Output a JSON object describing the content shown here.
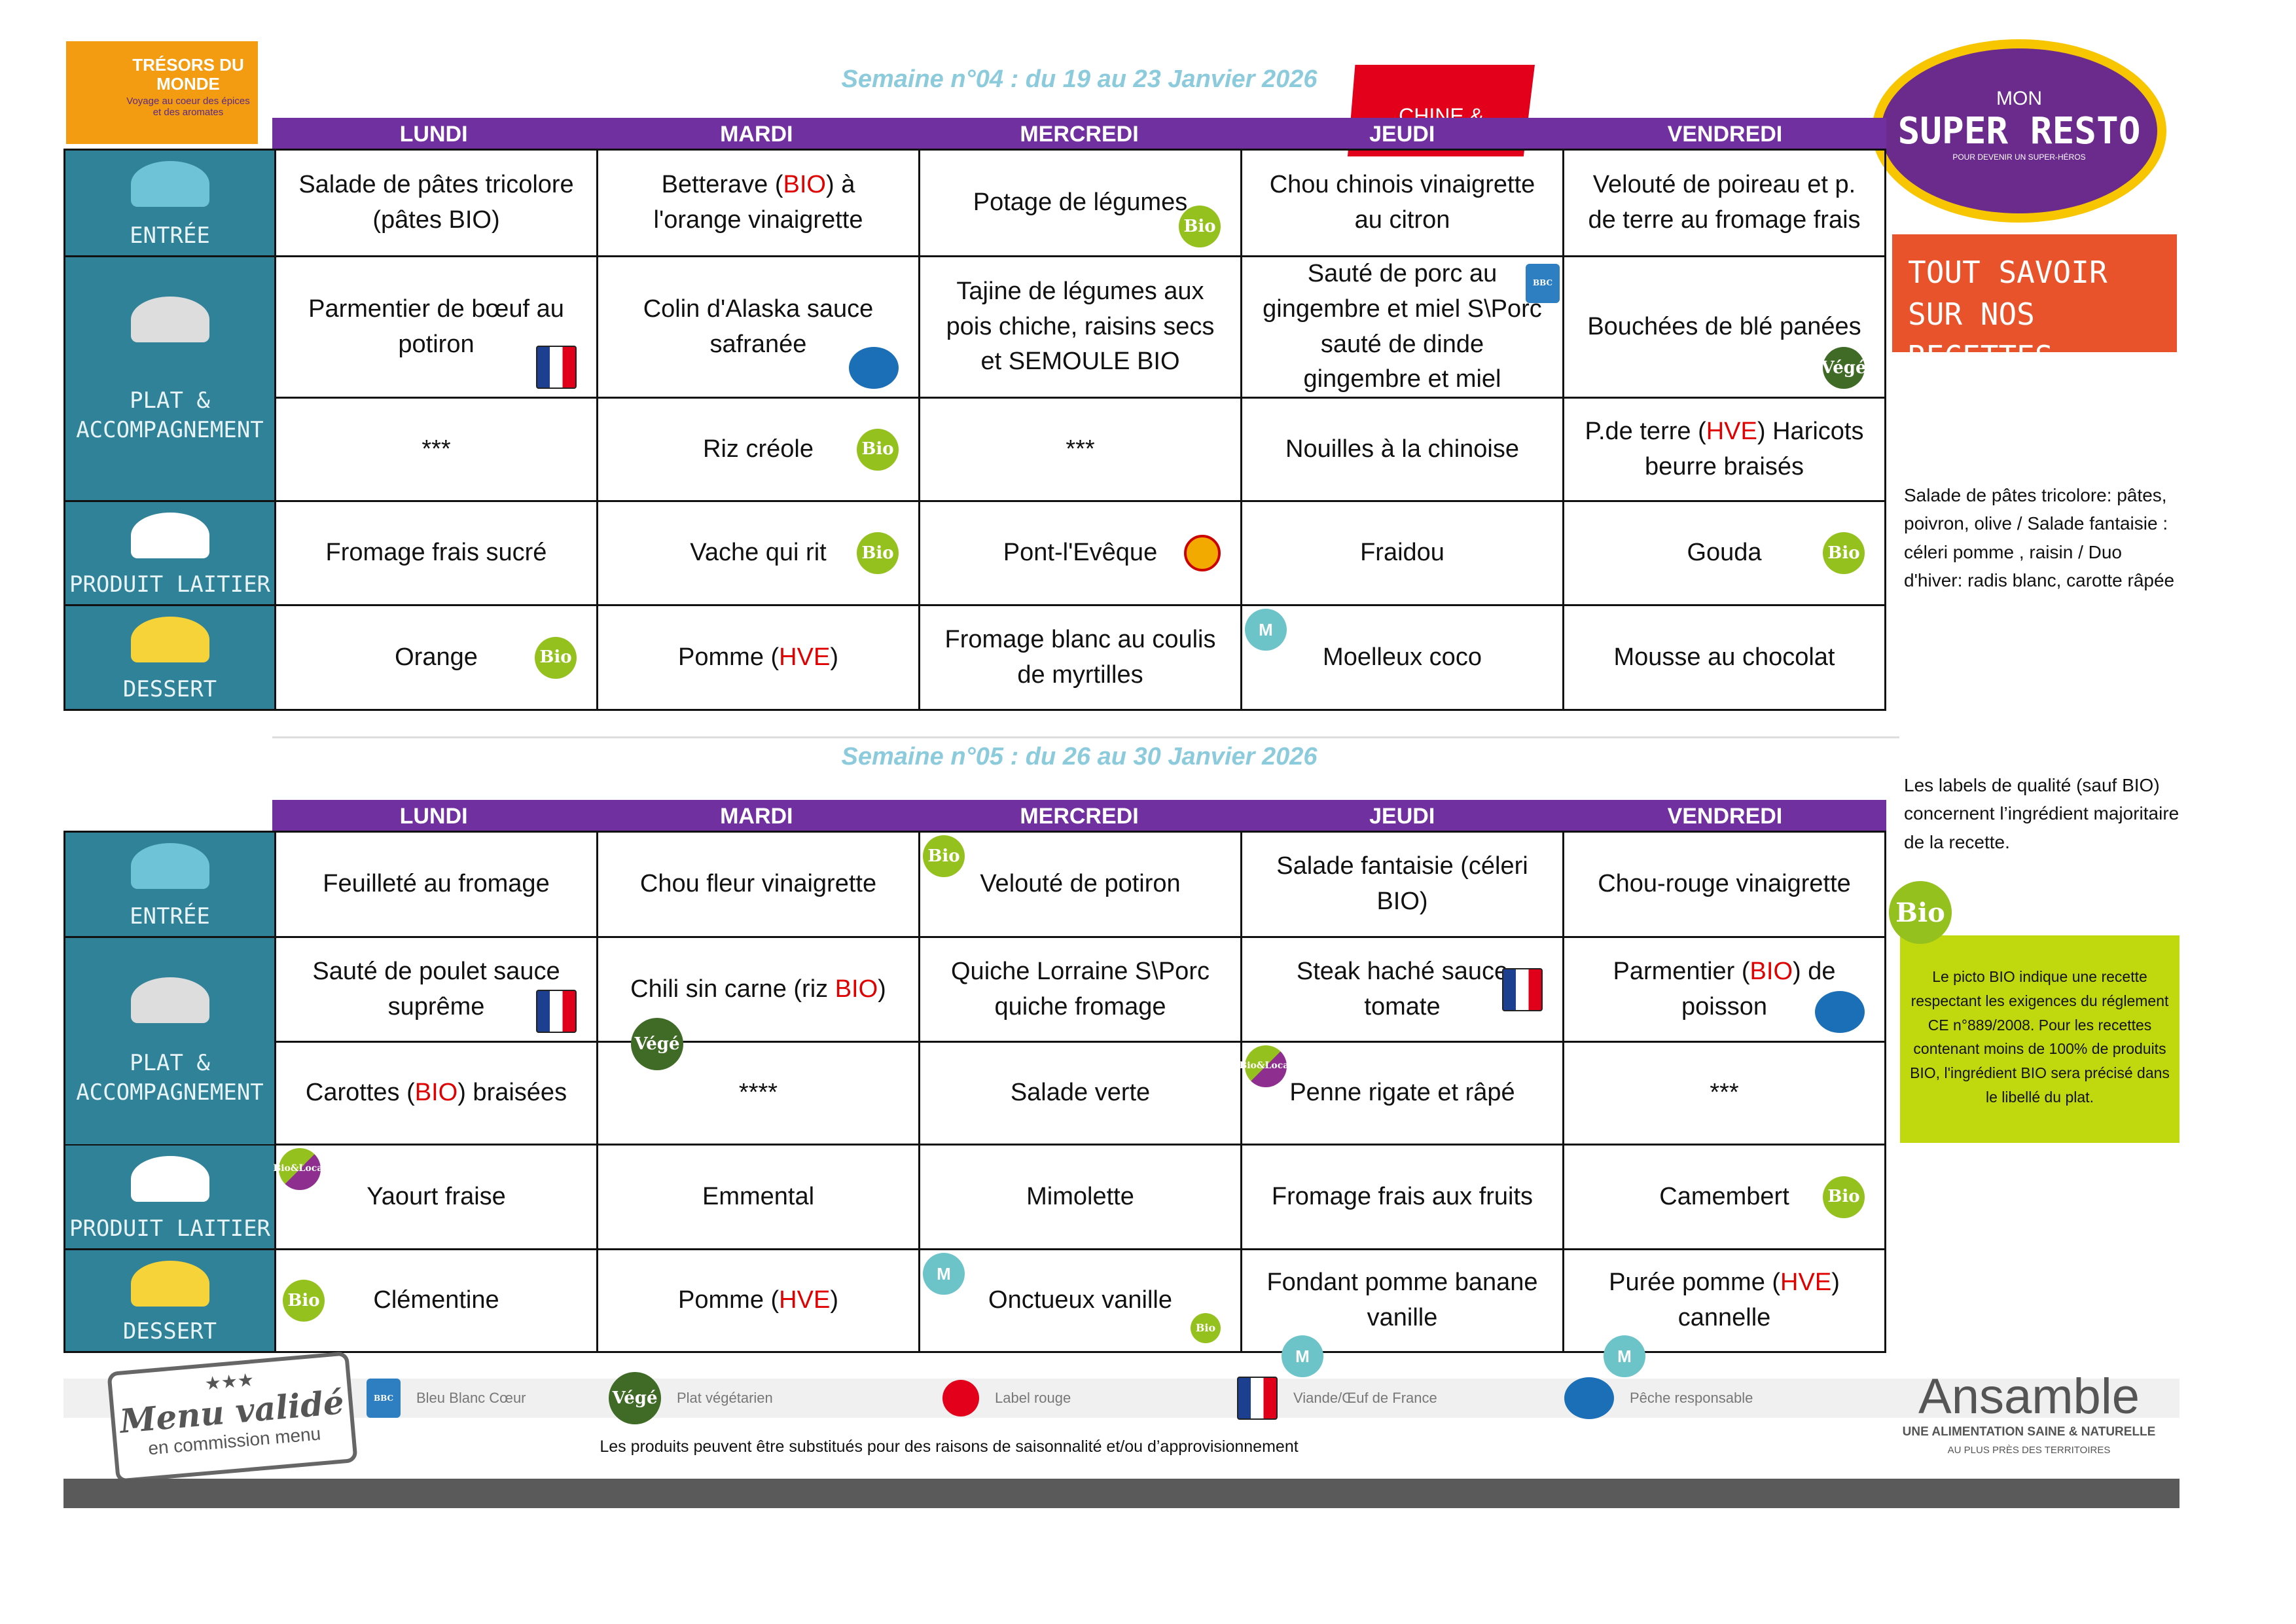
{
  "logos": {
    "tresors": "TRÉSORS DU MONDE",
    "tresors_sub": "Voyage au coeur des épices et des aromates",
    "chine": "CHINE & gingembre",
    "resto_small": "MON",
    "resto_big": "SUPER RESTO",
    "resto_tag": "POUR DEVENIR UN SUPER-HÉROS",
    "ansamble": "Ansamble",
    "ansamble_sub1": "UNE ALIMENTATION SAINE & NATURELLE",
    "ansamble_sub2": "AU PLUS PRÈS DES TERRITOIRES",
    "menu_valide": "Menu validé",
    "menu_valide_sub": "en commission menu",
    "stars": "★★★"
  },
  "colors": {
    "header": "#7030a0",
    "label_col": "#2f8297",
    "title": "#8ccbdc",
    "orange": "#e8532b",
    "bio_green": "#c0d90f"
  },
  "days": [
    "LUNDI",
    "MARDI",
    "MERCREDI",
    "JEUDI",
    "VENDREDI"
  ],
  "row_labels": [
    "ENTRÉE",
    "PLAT & ACCOMPAGNEMENT",
    "",
    "PRODUIT LAITIER",
    "DESSERT"
  ],
  "weeks": [
    {
      "title": "Semaine n°04 : du 19 au 23 Janvier 2026",
      "rows": [
        [
          {
            "t": "Salade de pâtes tricolore (pâtes BIO)"
          },
          {
            "t": "Betterave (BIO) à l'orange vinaigrette",
            "red": "BIO"
          },
          {
            "t": "Potage de légumes",
            "b": "bio",
            "p": "br"
          },
          {
            "t": "Chou chinois vinaigrette au citron"
          },
          {
            "t": "Velouté de poireau et p. de terre au fromage frais"
          }
        ],
        [
          {
            "t": "Parmentier de bœuf au potiron",
            "b": "france",
            "p": "br"
          },
          {
            "t": "Colin d'Alaska sauce safranée",
            "b": "fish",
            "p": "br"
          },
          {
            "t": "Tajine de légumes aux pois chiche, raisins secs et SEMOULE BIO"
          },
          {
            "t": "Sauté de porc au gingembre et miel S\\Porc sauté de dinde gingembre et miel",
            "b": "bbc",
            "p": "tr"
          },
          {
            "t": "Bouchées de blé panées",
            "b": "vege",
            "p": "br"
          }
        ],
        [
          {
            "t": "***"
          },
          {
            "t": "Riz créole",
            "b": "bio",
            "p": "r"
          },
          {
            "t": "***"
          },
          {
            "t": "Nouilles à la chinoise"
          },
          {
            "t": "P.de terre (HVE) Haricots beurre braisés",
            "red": "HVE"
          }
        ],
        [
          {
            "t": "Fromage frais sucré"
          },
          {
            "t": "Vache qui rit",
            "b": "bio",
            "p": "r"
          },
          {
            "t": "Pont-l'Evêque",
            "b": "aop",
            "p": "r"
          },
          {
            "t": "Fraidou"
          },
          {
            "t": "Gouda",
            "b": "bio",
            "p": "r"
          }
        ],
        [
          {
            "t": "Orange",
            "b": "bio",
            "p": "r"
          },
          {
            "t": "Pomme (HVE)",
            "red": "HVE"
          },
          {
            "t": "Fromage blanc au coulis de myrtilles"
          },
          {
            "t": "Moelleux coco",
            "b": "m",
            "p": "tl"
          },
          {
            "t": "Mousse au chocolat"
          }
        ]
      ]
    },
    {
      "title": "Semaine n°05 : du 26 au 30 Janvier 2026",
      "rows": [
        [
          {
            "t": "Feuilleté au fromage"
          },
          {
            "t": "Chou fleur vinaigrette"
          },
          {
            "t": "Velouté de potiron",
            "b": "bio",
            "p": "tl"
          },
          {
            "t": "Salade fantaisie (céleri BIO)"
          },
          {
            "t": "Chou-rouge vinaigrette"
          }
        ],
        [
          {
            "t": "Sauté de poulet sauce suprême",
            "b": "france",
            "p": "br"
          },
          {
            "t": "Chili sin carne (riz BIO)",
            "red": "BIO",
            "b": "vege",
            "p": "bl"
          },
          {
            "t": "Quiche Lorraine S\\Porc quiche fromage"
          },
          {
            "t": "Steak haché sauce tomate",
            "b": "france",
            "p": "r"
          },
          {
            "t": "Parmentier (BIO) de poisson",
            "red": "BIO",
            "b": "fish",
            "p": "br"
          }
        ],
        [
          {
            "t": "Carottes (BIO) braisées",
            "red": "BIO"
          },
          {
            "t": "****"
          },
          {
            "t": "Salade verte"
          },
          {
            "t": "Penne rigate et râpé",
            "b": "biolocal",
            "p": "tl"
          },
          {
            "t": "***"
          }
        ],
        [
          {
            "t": "Yaourt fraise",
            "b": "biolocal",
            "p": "tl"
          },
          {
            "t": "Emmental"
          },
          {
            "t": "Mimolette"
          },
          {
            "t": "Fromage frais aux fruits"
          },
          {
            "t": "Camembert",
            "b": "bio",
            "p": "r"
          }
        ],
        [
          {
            "t": "Clémentine",
            "b": "bio",
            "p": "l"
          },
          {
            "t": "Pomme (HVE)",
            "red": "HVE"
          },
          {
            "t": "Onctueux vanille",
            "b": "m",
            "p": "tl",
            "b2": "bio"
          },
          {
            "t": "Fondant pomme banane vanille",
            "b": "m",
            "p": "bl"
          },
          {
            "t": "Purée pomme (HVE) cannelle",
            "red": "HVE",
            "b": "m",
            "p": "bl"
          }
        ]
      ]
    }
  ],
  "badge_text": {
    "bio": "Bio",
    "vege": "Végé",
    "m": "M",
    "bbc": "BBC",
    "biolocal": "Bio&Local",
    "fish": "",
    "france": "",
    "aop": ""
  },
  "side": {
    "recipes_button": "TOUT SAVOIR SUR NOS RECETTES",
    "note1": "Salade de pâtes tricolore: pâtes, poivron, olive / Salade fantaisie : céleri pomme , raisin / Duo d'hiver: radis blanc, carotte râpée",
    "note2": "Les labels de qualité (sauf BIO) concernent l’ingrédient majoritaire de la recette.",
    "bio_badge": "Bio",
    "bio_box": "Le picto BIO indique une recette respectant les exigences du réglement CE n°889/2008. Pour les recettes contenant moins de 100% de produits BIO, l'ingrédient BIO sera précisé dans le libellé du plat."
  },
  "legend": [
    {
      "icon": "bbc",
      "label": "Bleu Blanc Cœur"
    },
    {
      "icon": "vege",
      "label": "Plat végétarien"
    },
    {
      "icon": "label-rouge",
      "label": "Label rouge"
    },
    {
      "icon": "france",
      "label": "Viande/Œuf de France"
    },
    {
      "icon": "fish",
      "label": "Pêche responsable"
    }
  ],
  "footer_note": "Les produits peuvent être substitués pour des raisons de saisonnalité et/ou d’approvisionnement"
}
